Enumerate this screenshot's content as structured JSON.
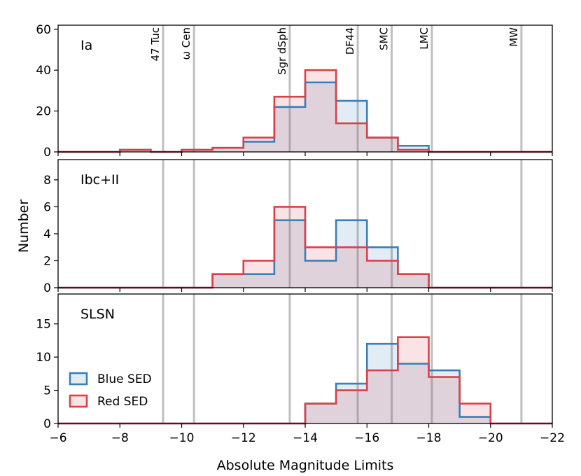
{
  "chart_data": {
    "type": "histogram",
    "xlabel": "Absolute Magnitude Limits",
    "ylabel": "Number",
    "xlim": [
      -6,
      -22
    ],
    "xticks": [
      -6,
      -8,
      -10,
      -12,
      -14,
      -16,
      -18,
      -20,
      -22
    ],
    "xtick_labels": [
      "−6",
      "−8",
      "−10",
      "−12",
      "−14",
      "−16",
      "−18",
      "−20",
      "−22"
    ],
    "bin_edges": [
      -6,
      -7,
      -8,
      -9,
      -10,
      -11,
      -12,
      -13,
      -14,
      -15,
      -16,
      -17,
      -18,
      -19,
      -20,
      -21,
      -22
    ],
    "colors": {
      "blue": "#3a7fb8",
      "red": "#d9414a",
      "reference_line": "#bfbfbf"
    },
    "reference_lines": [
      {
        "label": "47 Tuc",
        "x": -9.4
      },
      {
        "label": "ω Cen",
        "x": -10.4
      },
      {
        "label": "Sgr dSph",
        "x": -13.5
      },
      {
        "label": "DF44",
        "x": -15.7
      },
      {
        "label": "SMC",
        "x": -16.8
      },
      {
        "label": "LMC",
        "x": -18.1
      },
      {
        "label": "MW",
        "x": -21.0
      }
    ],
    "legend": {
      "location": "lower-left",
      "entries": [
        "Blue SED",
        "Red SED"
      ]
    },
    "panels": [
      {
        "title": "Ia",
        "ylim": [
          0,
          62
        ],
        "yticks": [
          0,
          20,
          40,
          60
        ],
        "show_reference_labels": true,
        "series": [
          {
            "name": "Blue SED",
            "values": [
              0,
              0,
              1,
              0,
              1,
              2,
              5,
              22,
              34,
              25,
              7,
              3,
              0,
              0,
              0,
              0
            ]
          },
          {
            "name": "Red SED",
            "values": [
              0,
              0,
              1,
              0,
              1,
              2,
              7,
              27,
              40,
              14,
              7,
              1,
              0,
              0,
              0,
              0
            ]
          }
        ]
      },
      {
        "title": "Ibc+II",
        "ylim": [
          0,
          9.5
        ],
        "yticks": [
          0,
          2,
          4,
          6,
          8
        ],
        "show_reference_labels": false,
        "series": [
          {
            "name": "Blue SED",
            "values": [
              0,
              0,
              0,
              0,
              0,
              1,
              1,
              5,
              2,
              5,
              3,
              1,
              0,
              0,
              0,
              0
            ]
          },
          {
            "name": "Red SED",
            "values": [
              0,
              0,
              0,
              0,
              0,
              1,
              2,
              6,
              3,
              3,
              2,
              1,
              0,
              0,
              0,
              0
            ]
          }
        ]
      },
      {
        "title": "SLSN",
        "ylim": [
          0,
          19.5
        ],
        "yticks": [
          0,
          5,
          10,
          15
        ],
        "show_reference_labels": false,
        "series": [
          {
            "name": "Blue SED",
            "values": [
              0,
              0,
              0,
              0,
              0,
              0,
              0,
              0,
              3,
              6,
              12,
              9,
              8,
              1,
              0,
              0
            ]
          },
          {
            "name": "Red SED",
            "values": [
              0,
              0,
              0,
              0,
              0,
              0,
              0,
              0,
              3,
              5,
              8,
              13,
              7,
              3,
              0,
              0
            ]
          }
        ]
      }
    ]
  }
}
